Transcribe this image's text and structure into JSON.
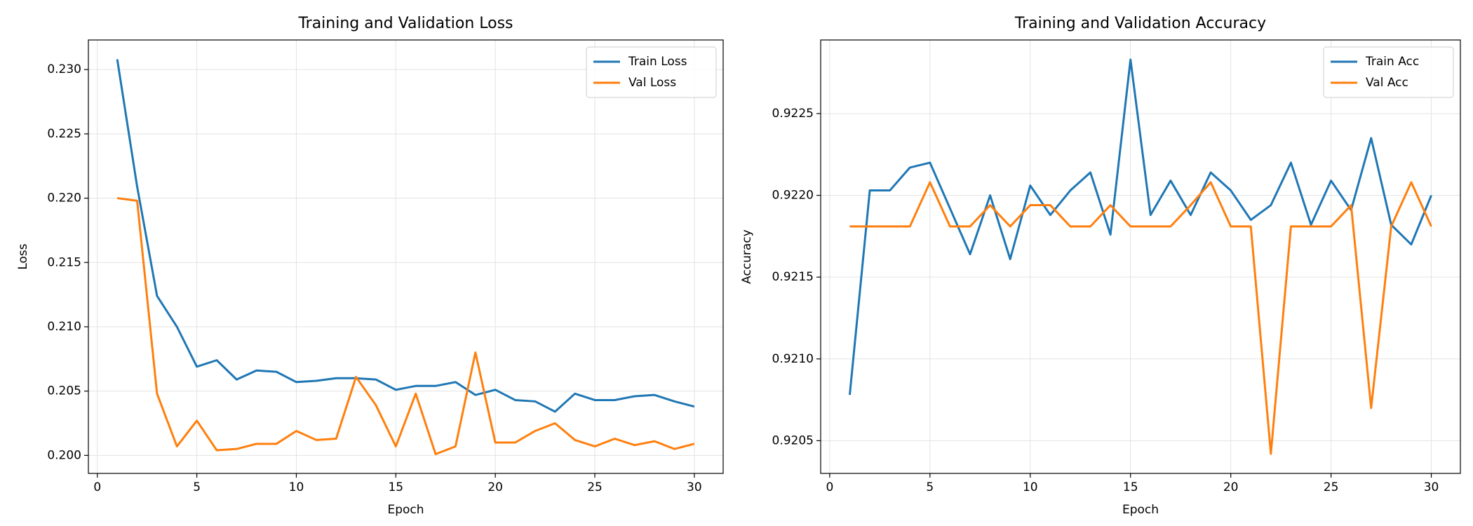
{
  "chart_data": [
    {
      "type": "line",
      "title": "Training and Validation Loss",
      "x_label": "Epoch",
      "y_label": "Loss",
      "x": [
        1,
        2,
        3,
        4,
        5,
        6,
        7,
        8,
        9,
        10,
        11,
        12,
        13,
        14,
        15,
        16,
        17,
        18,
        19,
        20,
        21,
        22,
        23,
        24,
        25,
        26,
        27,
        28,
        29,
        30
      ],
      "series": [
        {
          "name": "Train Loss",
          "color": "#1f77b4",
          "values": [
            0.2308,
            0.2209,
            0.2124,
            0.21,
            0.2069,
            0.2074,
            0.2059,
            0.2066,
            0.2065,
            0.2057,
            0.2058,
            0.206,
            0.206,
            0.2059,
            0.2051,
            0.2054,
            0.2054,
            0.2057,
            0.2047,
            0.2051,
            0.2043,
            0.2042,
            0.2034,
            0.2048,
            0.2043,
            0.2043,
            0.2046,
            0.2047,
            0.2042,
            0.2038
          ]
        },
        {
          "name": "Val Loss",
          "color": "#ff7f0e",
          "values": [
            0.22,
            0.2198,
            0.2048,
            0.2007,
            0.2027,
            0.2004,
            0.2005,
            0.2009,
            0.2009,
            0.2019,
            0.2012,
            0.2013,
            0.2061,
            0.2039,
            0.2007,
            0.2048,
            0.2001,
            0.2007,
            0.208,
            0.201,
            0.201,
            0.2019,
            0.2025,
            0.2012,
            0.2007,
            0.2013,
            0.2008,
            0.2011,
            0.2005,
            0.2009
          ]
        }
      ],
      "xlim": [
        -0.45,
        31.45
      ],
      "xticks": [
        0,
        5,
        10,
        15,
        20,
        25,
        30
      ],
      "ylim": [
        0.1986,
        0.2323
      ],
      "yticks": [
        {
          "value": 0.2,
          "label": "0.200"
        },
        {
          "value": 0.205,
          "label": "0.205"
        },
        {
          "value": 0.21,
          "label": "0.210"
        },
        {
          "value": 0.215,
          "label": "0.215"
        },
        {
          "value": 0.22,
          "label": "0.220"
        },
        {
          "value": 0.225,
          "label": "0.225"
        },
        {
          "value": 0.23,
          "label": "0.230"
        }
      ],
      "grid": true,
      "legend": "upper right"
    },
    {
      "type": "line",
      "title": "Training and Validation Accuracy",
      "x_label": "Epoch",
      "y_label": "Accuracy",
      "x": [
        1,
        2,
        3,
        4,
        5,
        6,
        7,
        8,
        9,
        10,
        11,
        12,
        13,
        14,
        15,
        16,
        17,
        18,
        19,
        20,
        21,
        22,
        23,
        24,
        25,
        26,
        27,
        28,
        29,
        30
      ],
      "series": [
        {
          "name": "Train Acc",
          "color": "#1f77b4",
          "values": [
            0.92078,
            0.92203,
            0.92203,
            0.92217,
            0.9222,
            0.92192,
            0.92164,
            0.922,
            0.92161,
            0.92206,
            0.92188,
            0.92203,
            0.92214,
            0.92176,
            0.92283,
            0.92188,
            0.92209,
            0.92188,
            0.92214,
            0.92203,
            0.92185,
            0.92194,
            0.9222,
            0.92182,
            0.92209,
            0.92191,
            0.92235,
            0.92182,
            0.9217,
            0.922
          ]
        },
        {
          "name": "Val Acc",
          "color": "#ff7f0e",
          "values": [
            0.92181,
            0.92181,
            0.92181,
            0.92181,
            0.92208,
            0.92181,
            0.92181,
            0.92194,
            0.92181,
            0.92194,
            0.92194,
            0.92181,
            0.92181,
            0.92194,
            0.92181,
            0.92181,
            0.92181,
            0.92194,
            0.92208,
            0.92181,
            0.92181,
            0.92042,
            0.92181,
            0.92181,
            0.92181,
            0.92194,
            0.9207,
            0.92181,
            0.92208,
            0.92181
          ]
        }
      ],
      "xlim": [
        -0.45,
        31.45
      ],
      "xticks": [
        0,
        5,
        10,
        15,
        20,
        25,
        30
      ],
      "ylim": [
        0.9203,
        0.92295
      ],
      "yticks": [
        0.9205,
        {
          "value": 0.921,
          "label": "0.9210"
        },
        0.9215,
        {
          "value": 0.922,
          "label": "0.9220"
        },
        0.9225
      ],
      "grid": true,
      "legend": "upper right"
    }
  ]
}
